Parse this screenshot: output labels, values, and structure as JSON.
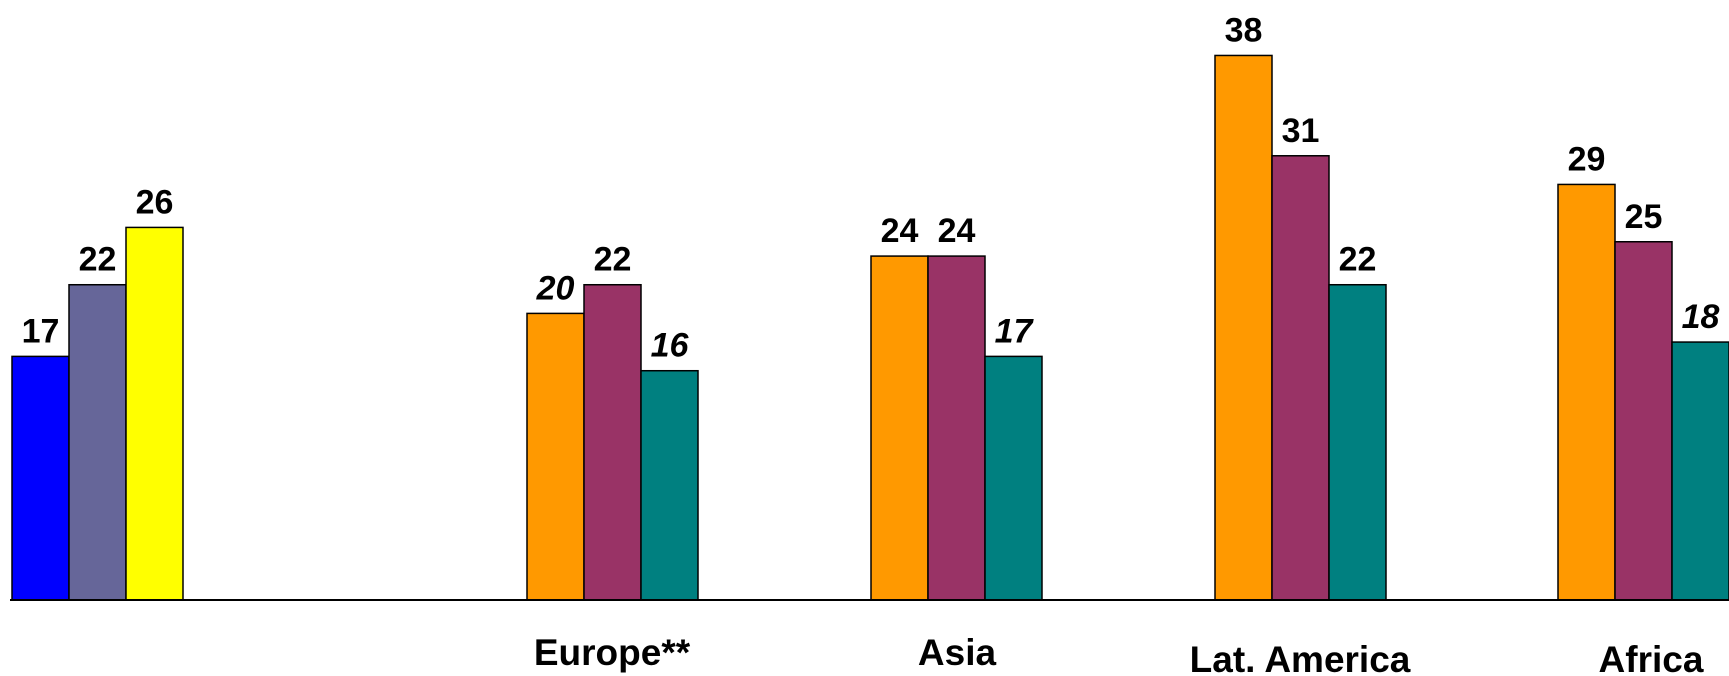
{
  "chart_data": {
    "type": "bar",
    "categories": [
      "",
      "Europe**",
      "Asia",
      "Lat. America",
      "Africa"
    ],
    "groups": [
      {
        "category": "",
        "bars": [
          {
            "value": 17,
            "label": "17",
            "italic": false,
            "color": "#0000ff"
          },
          {
            "value": 22,
            "label": "22",
            "italic": false,
            "color": "#666699"
          },
          {
            "value": 26,
            "label": "26",
            "italic": false,
            "color": "#ffff00"
          }
        ]
      },
      {
        "category": "Europe**",
        "bars": [
          {
            "value": 20,
            "label": "20",
            "italic": true,
            "color": "#ff9900"
          },
          {
            "value": 22,
            "label": "22",
            "italic": false,
            "color": "#993366"
          },
          {
            "value": 16,
            "label": "16",
            "italic": true,
            "color": "#008080"
          }
        ]
      },
      {
        "category": "Asia",
        "bars": [
          {
            "value": 24,
            "label": "24",
            "italic": false,
            "color": "#ff9900"
          },
          {
            "value": 24,
            "label": "24",
            "italic": false,
            "color": "#993366"
          },
          {
            "value": 17,
            "label": "17",
            "italic": true,
            "color": "#008080"
          }
        ]
      },
      {
        "category": "Lat. America",
        "bars": [
          {
            "value": 38,
            "label": "38",
            "italic": false,
            "color": "#ff9900"
          },
          {
            "value": 31,
            "label": "31",
            "italic": false,
            "color": "#993366"
          },
          {
            "value": 22,
            "label": "22",
            "italic": false,
            "color": "#008080"
          }
        ]
      },
      {
        "category": "Africa",
        "bars": [
          {
            "value": 29,
            "label": "29",
            "italic": false,
            "color": "#ff9900"
          },
          {
            "value": 25,
            "label": "25",
            "italic": false,
            "color": "#993366"
          },
          {
            "value": 18,
            "label": "18",
            "italic": true,
            "color": "#008080"
          }
        ]
      }
    ],
    "ylim": [
      0,
      38
    ],
    "grid": false,
    "legend": "none"
  }
}
